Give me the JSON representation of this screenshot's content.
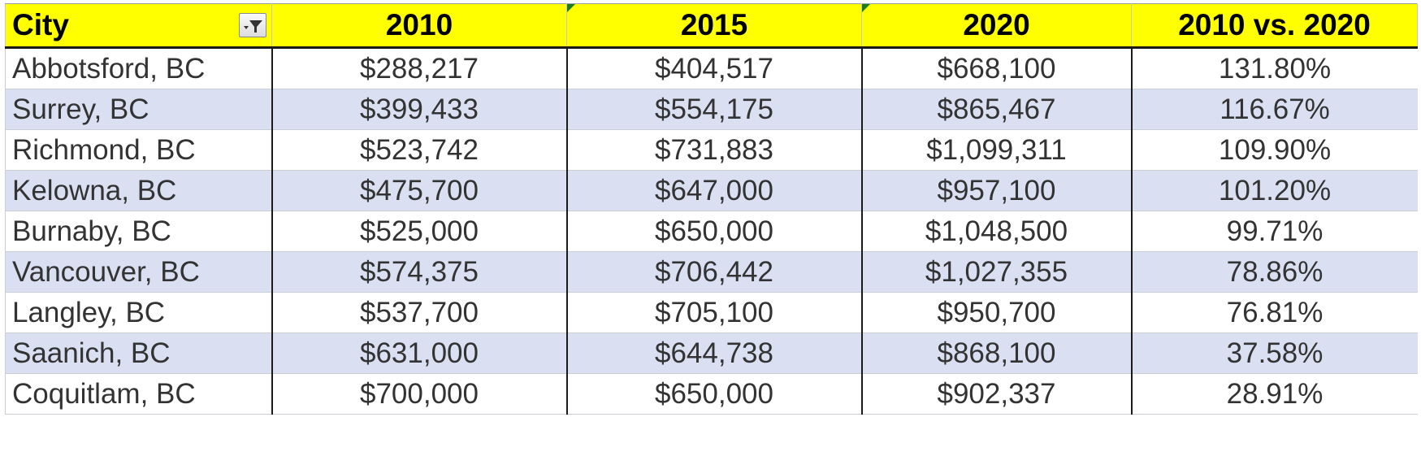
{
  "table": {
    "headers": {
      "city": "City",
      "y2010": "2010",
      "y2015": "2015",
      "y2020": "2020",
      "change": "2010 vs. 2020"
    },
    "filter_icon": "filter-funnel-icon",
    "header_bg": "#ffff00",
    "band_color": "#dae0f2",
    "rows": [
      {
        "city": "Abbotsford, BC",
        "y2010": "$288,217",
        "y2015": "$404,517",
        "y2020": "$668,100",
        "change": "131.80%"
      },
      {
        "city": "Surrey, BC",
        "y2010": "$399,433",
        "y2015": "$554,175",
        "y2020": "$865,467",
        "change": "116.67%"
      },
      {
        "city": "Richmond, BC",
        "y2010": "$523,742",
        "y2015": "$731,883",
        "y2020": "$1,099,311",
        "change": "109.90%"
      },
      {
        "city": "Kelowna, BC",
        "y2010": "$475,700",
        "y2015": "$647,000",
        "y2020": "$957,100",
        "change": "101.20%"
      },
      {
        "city": "Burnaby, BC",
        "y2010": "$525,000",
        "y2015": "$650,000",
        "y2020": "$1,048,500",
        "change": "99.71%"
      },
      {
        "city": "Vancouver, BC",
        "y2010": "$574,375",
        "y2015": "$706,442",
        "y2020": "$1,027,355",
        "change": "78.86%"
      },
      {
        "city": "Langley, BC",
        "y2010": "$537,700",
        "y2015": "$705,100",
        "y2020": "$950,700",
        "change": "76.81%"
      },
      {
        "city": "Saanich, BC",
        "y2010": "$631,000",
        "y2015": "$644,738",
        "y2020": "$868,100",
        "change": "37.58%"
      },
      {
        "city": "Coquitlam, BC",
        "y2010": "$700,000",
        "y2015": "$650,000",
        "y2020": "$902,337",
        "change": "28.91%"
      }
    ]
  }
}
